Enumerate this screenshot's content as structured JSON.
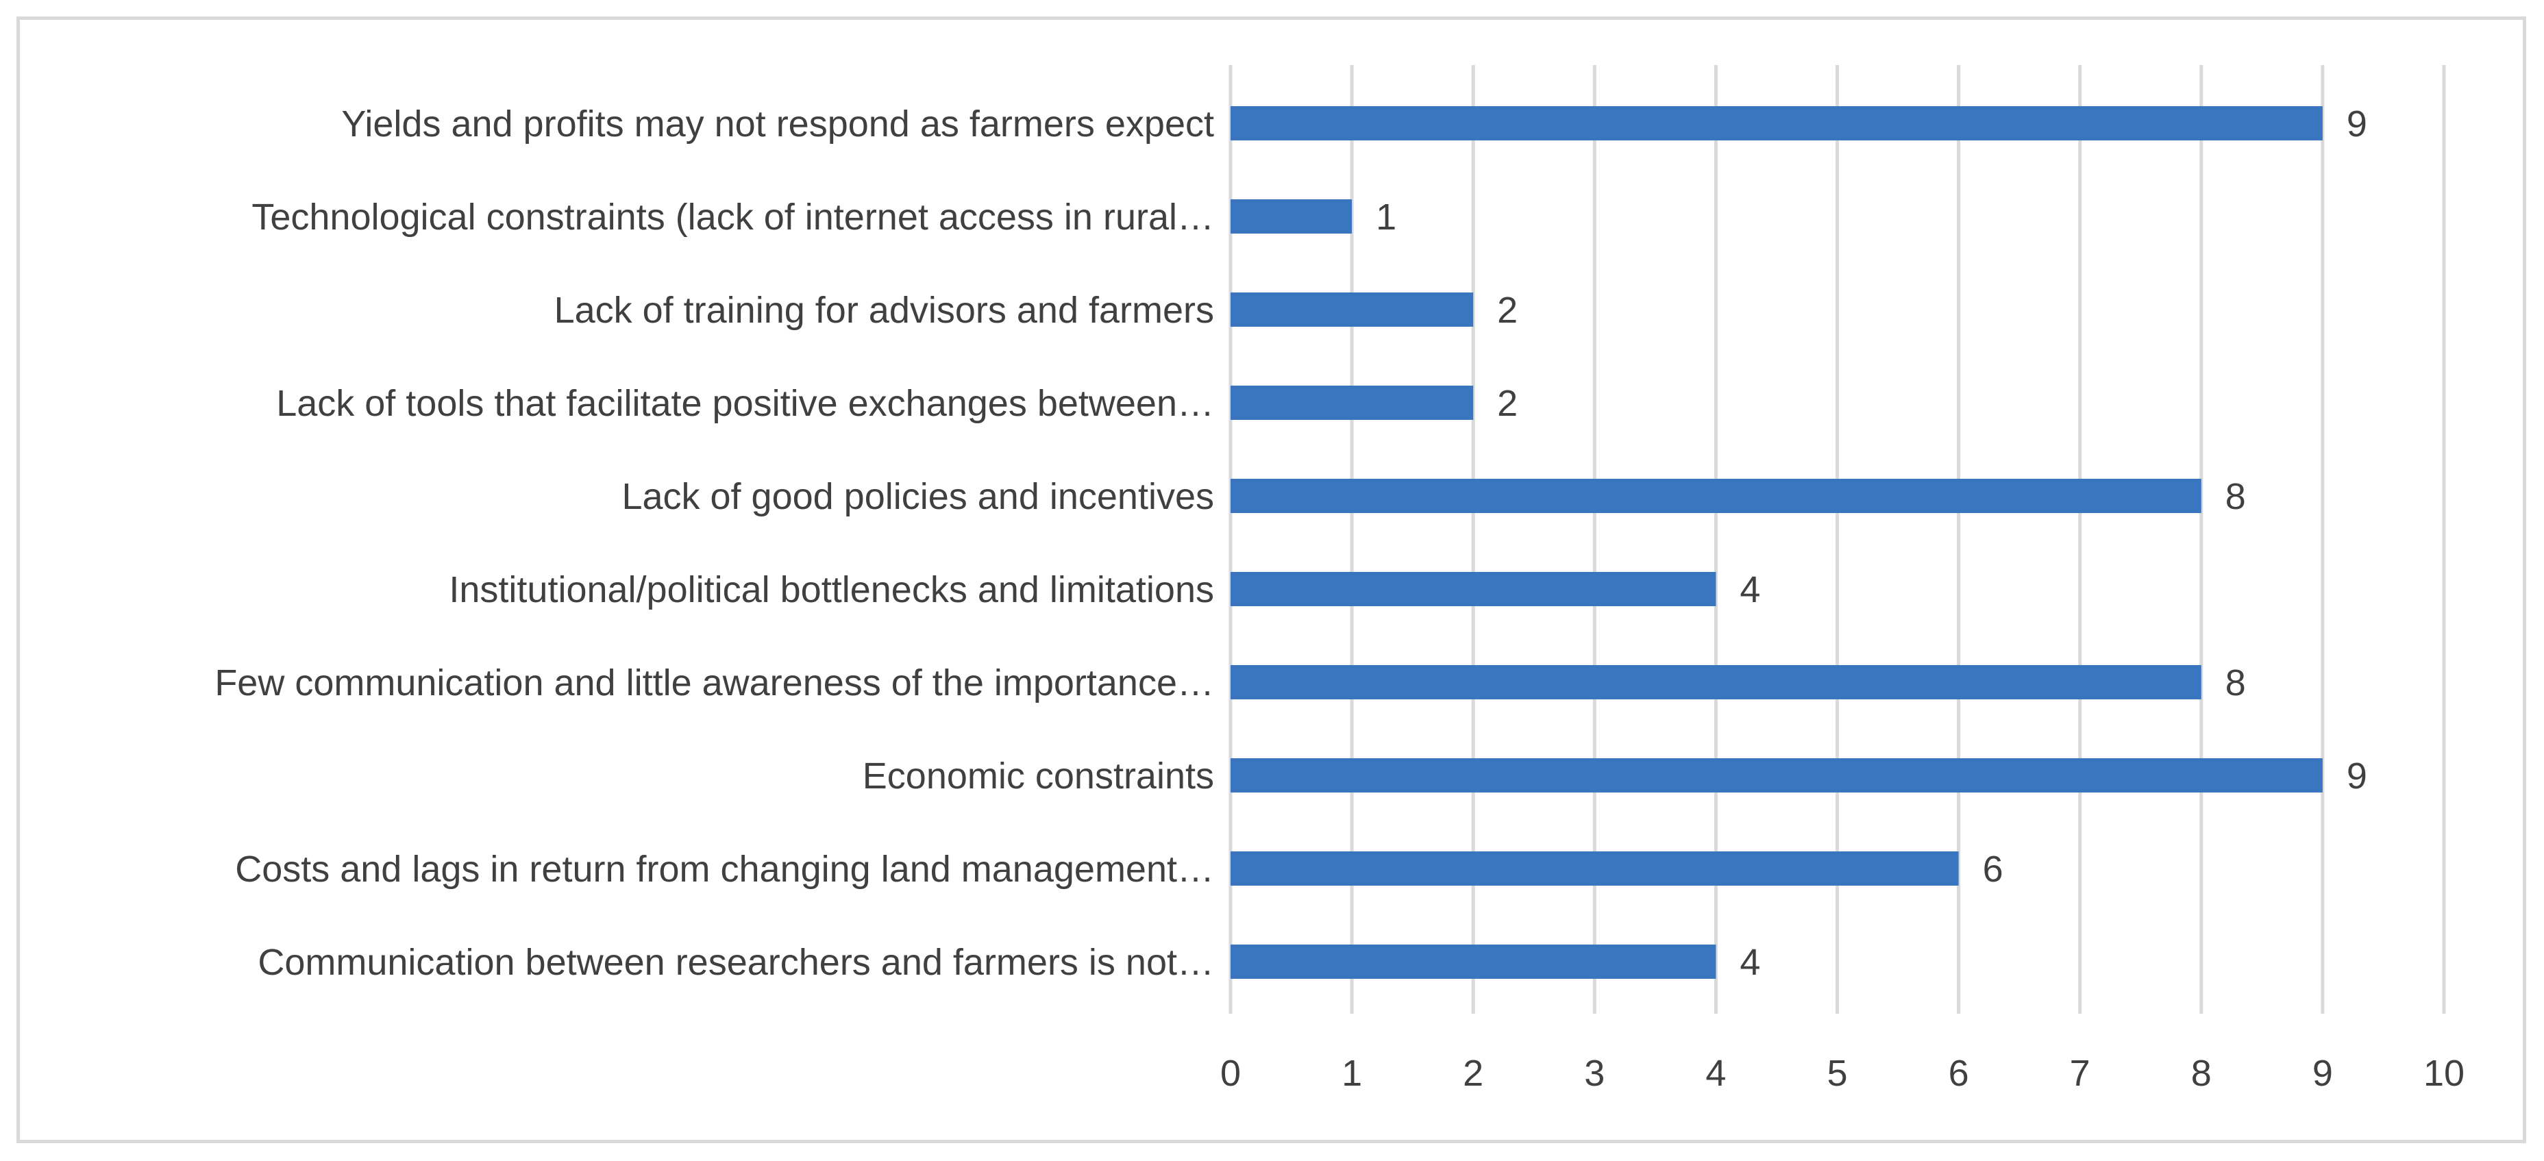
{
  "chart_data": {
    "type": "bar",
    "orientation": "horizontal",
    "title": "",
    "xlabel": "",
    "ylabel": "",
    "xlim": [
      0,
      10
    ],
    "x_ticks": [
      "0",
      "1",
      "2",
      "3",
      "4",
      "5",
      "6",
      "7",
      "8",
      "9",
      "10"
    ],
    "grid": "vertical",
    "legend": "none",
    "bar_color": "#3a76c0",
    "categories": [
      "Yields and profits may not respond as farmers expect",
      "Technological constraints (lack of internet access in rural…",
      "Lack of training for advisors and farmers",
      "Lack of tools that facilitate positive exchanges between…",
      "Lack of good policies and incentives",
      "Institutional/political bottlenecks and limitations",
      "Few communication and little awareness of the importance…",
      "Economic constraints",
      "Costs and lags in return from changing land management…",
      "Communication between researchers and farmers is not…"
    ],
    "values": [
      9,
      1,
      2,
      2,
      8,
      4,
      8,
      9,
      6,
      4
    ],
    "data_labels": [
      "9",
      "1",
      "2",
      "2",
      "8",
      "4",
      "8",
      "9",
      "6",
      "4"
    ]
  }
}
